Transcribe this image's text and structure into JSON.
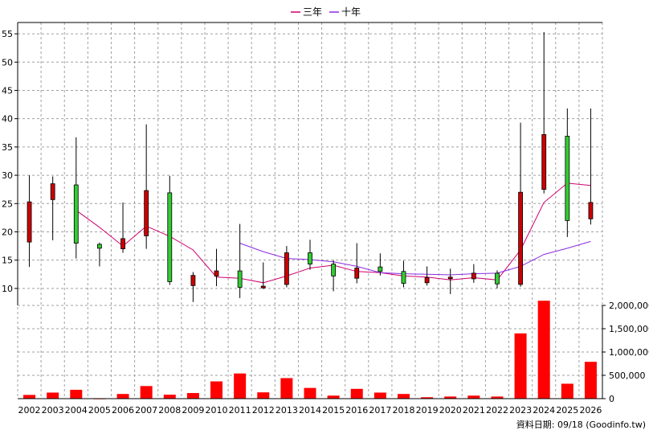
{
  "chart_data": {
    "type": "candlestick",
    "legend": [
      {
        "label": "三年",
        "color": "#d0006f"
      },
      {
        "label": "十年",
        "color": "#8a2be2"
      }
    ],
    "categories": [
      "2002",
      "2003",
      "2004",
      "2005",
      "2006",
      "2007",
      "2008",
      "2009",
      "2010",
      "2011",
      "2012",
      "2013",
      "2014",
      "2015",
      "2016",
      "2017",
      "2018",
      "2019",
      "2020",
      "2021",
      "2022",
      "2023",
      "2024",
      "2025",
      "2026"
    ],
    "price_axis": {
      "ylim": [
        7,
        57
      ],
      "ticks": [
        10,
        15,
        20,
        25,
        30,
        35,
        40,
        45,
        50,
        55
      ]
    },
    "volume_axis": {
      "ylim": [
        0,
        2000000
      ],
      "ticks": [
        0,
        500000,
        1000000,
        1500000,
        2000000
      ],
      "tick_labels": [
        "0",
        "500,000",
        "1,000,000",
        "1,500,000",
        "2,000,000"
      ]
    },
    "candles": [
      {
        "year": "2002",
        "open": 18.2,
        "close": 25.3,
        "high": 30.0,
        "low": 13.8
      },
      {
        "year": "2003",
        "open": 25.7,
        "close": 28.5,
        "high": 29.8,
        "low": 18.5
      },
      {
        "year": "2004",
        "open": 28.3,
        "close": 18.0,
        "high": 36.7,
        "low": 15.3
      },
      {
        "year": "2005",
        "open": 17.8,
        "close": 17.1,
        "high": 18.1,
        "low": 13.9
      },
      {
        "year": "2006",
        "open": 17.0,
        "close": 18.8,
        "high": 25.2,
        "low": 16.3
      },
      {
        "year": "2007",
        "open": 19.3,
        "close": 27.3,
        "high": 39.0,
        "low": 17.0
      },
      {
        "year": "2008",
        "open": 26.9,
        "close": 11.2,
        "high": 29.9,
        "low": 10.6
      },
      {
        "year": "2009",
        "open": 10.5,
        "close": 12.3,
        "high": 12.9,
        "low": 7.6
      },
      {
        "year": "2010",
        "open": 12.2,
        "close": 13.1,
        "high": 17.0,
        "low": 10.4
      },
      {
        "year": "2011",
        "open": 13.1,
        "close": 10.2,
        "high": 21.4,
        "low": 8.3
      },
      {
        "year": "2012",
        "open": 10.1,
        "close": 10.4,
        "high": 14.6,
        "low": 9.9
      },
      {
        "year": "2013",
        "open": 10.7,
        "close": 16.3,
        "high": 17.5,
        "low": 10.2
      },
      {
        "year": "2014",
        "open": 16.3,
        "close": 14.3,
        "high": 18.6,
        "low": 13.3
      },
      {
        "year": "2015",
        "open": 14.3,
        "close": 12.2,
        "high": 15.0,
        "low": 9.5
      },
      {
        "year": "2016",
        "open": 11.8,
        "close": 13.6,
        "high": 18.0,
        "low": 10.9
      },
      {
        "year": "2017",
        "open": 13.8,
        "close": 13.0,
        "high": 16.2,
        "low": 12.3
      },
      {
        "year": "2018",
        "open": 13.0,
        "close": 10.9,
        "high": 14.9,
        "low": 10.2
      },
      {
        "year": "2019",
        "open": 11.0,
        "close": 11.9,
        "high": 13.9,
        "low": 10.5
      },
      {
        "year": "2020",
        "open": 11.9,
        "close": 12.0,
        "high": 13.5,
        "low": 9.0
      },
      {
        "year": "2021",
        "open": 11.7,
        "close": 12.7,
        "high": 14.3,
        "low": 11.0
      },
      {
        "year": "2022",
        "open": 12.7,
        "close": 10.8,
        "high": 13.2,
        "low": 10.0
      },
      {
        "year": "2023",
        "open": 10.7,
        "close": 27.0,
        "high": 39.3,
        "low": 10.3
      },
      {
        "year": "2024",
        "open": 27.5,
        "close": 37.2,
        "high": 55.3,
        "low": 26.8
      },
      {
        "year": "2025",
        "open": 36.9,
        "close": 22.0,
        "high": 41.8,
        "low": 19.1
      },
      {
        "year": "2026",
        "open": 22.3,
        "close": 25.2,
        "high": 41.8,
        "low": 21.3
      }
    ],
    "series": [
      {
        "name": "三年",
        "color": "#d0006f",
        "values": [
          null,
          null,
          23.8,
          20.8,
          17.5,
          21.0,
          19.2,
          16.8,
          12.0,
          11.8,
          11.0,
          12.2,
          13.6,
          14.1,
          13.0,
          12.8,
          12.2,
          12.0,
          11.5,
          11.9,
          11.5,
          16.8,
          25.2,
          28.6,
          28.2
        ]
      },
      {
        "name": "十年",
        "color": "#8a2be2",
        "values": [
          null,
          null,
          null,
          null,
          null,
          null,
          null,
          null,
          null,
          18.0,
          16.5,
          15.3,
          15.1,
          14.7,
          13.9,
          12.8,
          12.6,
          12.5,
          12.4,
          12.6,
          12.7,
          13.9,
          16.0,
          17.1,
          18.3
        ]
      }
    ],
    "volume": [
      80000,
      130000,
      190000,
      5000,
      100000,
      270000,
      85000,
      120000,
      370000,
      540000,
      135000,
      440000,
      230000,
      65000,
      210000,
      130000,
      100000,
      30000,
      45000,
      65000,
      45000,
      1400000,
      2100000,
      320000,
      790000
    ],
    "volume_color": "#ff0000",
    "up_color": "#cc0000",
    "down_color": "#33cc33"
  },
  "source_text": "資料日期: 09/18  (Goodinfo.tw)"
}
